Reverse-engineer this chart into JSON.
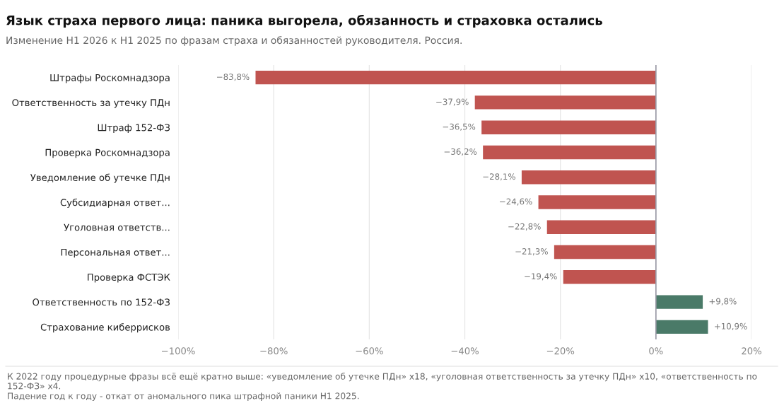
{
  "chart_data": {
    "type": "bar",
    "orientation": "horizontal",
    "title": "Язык страха первого лица: паника выгорела, обязанность и страховка остались",
    "subtitle": "Изменение H1 2026 к H1 2025 по фразам страха и обязанностей руководителя. Россия.",
    "categories": [
      "Штрафы Роскомнадзора",
      "Ответственность за утечку ПДн",
      "Штраф 152-ФЗ",
      "Проверка Роскомнадзора",
      "Уведомление об утечке ПДн",
      "Субсидиарная ответ...",
      "Уголовная ответств...",
      "Персональная ответ...",
      "Проверка ФСТЭК",
      "Ответственность по 152-ФЗ",
      "Страхование киберрисков"
    ],
    "values": [
      -83.8,
      -37.9,
      -36.5,
      -36.2,
      -28.1,
      -24.6,
      -22.8,
      -21.3,
      -19.4,
      9.8,
      10.9
    ],
    "colors": [
      "#c05450",
      "#c05450",
      "#c05450",
      "#c05450",
      "#c05450",
      "#c05450",
      "#c05450",
      "#c05450",
      "#c05450",
      "#4a7a68",
      "#4a7a68"
    ],
    "value_labels": [
      "−83,8%",
      "−37,9%",
      "−36,5%",
      "−36,2%",
      "−28,1%",
      "−24,6%",
      "−22,8%",
      "−21,3%",
      "−19,4%",
      "+9,8%",
      "+10,9%"
    ],
    "xlim": [
      -100,
      20
    ],
    "xticks": [
      {
        "value": -100,
        "label": "−100%"
      },
      {
        "value": -80,
        "label": "−80%"
      },
      {
        "value": -60,
        "label": "−60%"
      },
      {
        "value": -40,
        "label": "−40%"
      },
      {
        "value": -20,
        "label": "−20%"
      },
      {
        "value": 0,
        "label": "0%"
      },
      {
        "value": 20,
        "label": "20%"
      }
    ],
    "ref_lines": [
      {
        "axis": "x",
        "value": 0,
        "color": "#9a9aa6"
      }
    ],
    "grid": "x",
    "legend": false,
    "annotations": [
      "К 2022 году процедурные фразы всё ещё кратно выше: «уведомление об утечке ПДн» x18, «уголовная ответственность за утечку ПДн» x10, «ответственность по 152-ФЗ» x4.",
      "Падение год к году - откат от аномального пика штрафной паники H1 2025."
    ]
  }
}
